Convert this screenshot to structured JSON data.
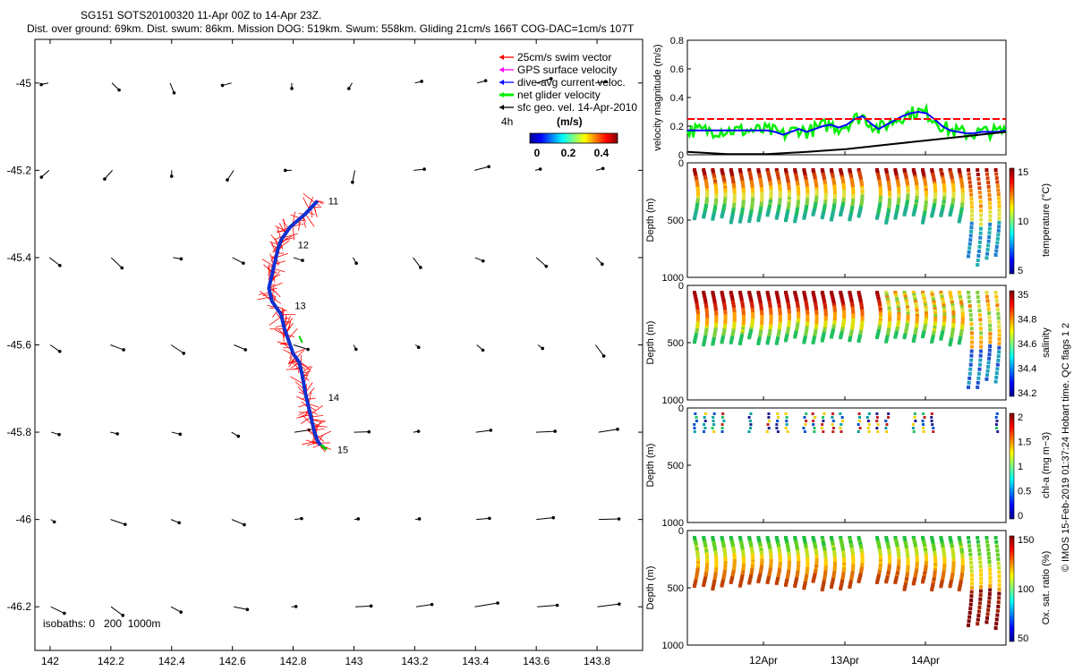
{
  "header": {
    "title": "SG151 SOTS20100320 11-Apr 00Z to 14-Apr 23Z.",
    "subtitle": "Dist. over ground: 69km. Dist. swum: 86km. Mission DOG: 519km. Swum: 558km. Gliding 21cm/s 166T COG-DAC=1cm/s 107T"
  },
  "map": {
    "legend": [
      {
        "label": "25cm/s swim vector",
        "color": "#ff0000"
      },
      {
        "label": "GPS surface velocity",
        "color": "#ff00ff"
      },
      {
        "label": "dive-avg current veloc.",
        "color": "#0000ff"
      },
      {
        "label": "net glider velocity",
        "color": "#00ee00"
      },
      {
        "label": "sfc geo. vel. 14-Apr-2010",
        "color": "#000000"
      }
    ],
    "legend_extra": "4h",
    "colorbar_unit": "(m/s)",
    "colorbar_ticks": [
      "0",
      "0.2",
      "0.4"
    ],
    "isobaths_label": "isobaths: 0   200  1000m",
    "x_ticks": [
      "142",
      "142.2",
      "142.4",
      "142.6",
      "142.8",
      "143",
      "143.2",
      "143.4",
      "143.6",
      "143.8"
    ],
    "y_ticks": [
      "-45",
      "-45.2",
      "-45.4",
      "-45.6",
      "-45.8",
      "-46",
      "-46.2"
    ],
    "track_labels": [
      "11",
      "12",
      "13",
      "14",
      "15"
    ],
    "colors": {
      "track": "#1030d0",
      "swim": "#ff0000",
      "net": "#00cc00",
      "geo": "#000000"
    }
  },
  "right_panels": {
    "velocity": {
      "ylabel": "velocity magnitude (m/s)",
      "y_ticks": [
        "0",
        "0.2",
        "0.4",
        "0.6",
        "0.8"
      ]
    },
    "temperature": {
      "ylabel": "Depth (m)",
      "cbar_label": "temperature (°C)",
      "cbar_ticks": [
        "15",
        "10",
        "5"
      ],
      "y_ticks": [
        "0",
        "500",
        "1000"
      ]
    },
    "salinity": {
      "ylabel": "Depth (m)",
      "cbar_label": "salinity",
      "cbar_ticks": [
        "35",
        "34.8",
        "34.6",
        "34.4",
        "34.2"
      ],
      "y_ticks": [
        "0",
        "500",
        "1000"
      ]
    },
    "chla": {
      "ylabel": "Depth (m)",
      "cbar_label": "chl-a (mg m−3)",
      "cbar_ticks": [
        "2",
        "1.5",
        "1",
        "0.5",
        "0"
      ],
      "y_ticks": [
        "0",
        "500",
        "1000"
      ]
    },
    "oxygen": {
      "ylabel": "Depth (m)",
      "cbar_label": "Ox. sat. ratio (%)",
      "cbar_ticks": [
        "150",
        "100",
        "50"
      ],
      "y_ticks": [
        "0",
        "500",
        "1000"
      ]
    },
    "x_ticks": [
      "12Apr",
      "13Apr",
      "14Apr"
    ]
  },
  "credit": "© IMOS 15-Feb-2019 01:37:24 Hobart time. QC flags 1  2",
  "chart_data": [
    {
      "type": "line",
      "x_type": "position",
      "xlim": [
        141.95,
        143.95
      ],
      "ylim": [
        -46.3,
        -44.9
      ],
      "track": {
        "x": [
          142.88,
          142.84,
          142.79,
          142.76,
          142.75,
          142.74,
          142.73,
          142.72,
          142.73,
          142.76,
          142.77,
          142.78,
          142.8,
          142.82,
          142.83,
          142.84,
          142.85,
          142.86,
          142.87,
          142.88,
          142.89
        ],
        "y": [
          -45.27,
          -45.3,
          -45.33,
          -45.36,
          -45.38,
          -45.41,
          -45.44,
          -45.47,
          -45.5,
          -45.53,
          -45.56,
          -45.58,
          -45.62,
          -45.64,
          -45.67,
          -45.71,
          -45.74,
          -45.77,
          -45.8,
          -45.82,
          -45.83
        ]
      },
      "track_label_positions": {
        "x": [
          142.88,
          142.78,
          142.77,
          142.88,
          142.91
        ],
        "y": [
          -45.27,
          -45.37,
          -45.51,
          -45.72,
          -45.84
        ]
      }
    },
    {
      "type": "line",
      "ylabel": "velocity magnitude (m/s)",
      "ylim": [
        0,
        0.8
      ],
      "x_range": [
        "11-Apr",
        "15-Apr"
      ],
      "series": [
        {
          "color": "#0000ff",
          "x": [
            0,
            0.1,
            0.3,
            0.5,
            0.7,
            0.9,
            1.0,
            1.1,
            1.2,
            1.3,
            1.4,
            1.5,
            1.6,
            1.7,
            1.8,
            1.9,
            2.0,
            2.1,
            2.2,
            2.3,
            2.4,
            2.5,
            2.6,
            2.7,
            2.8,
            2.9,
            3.0,
            3.1,
            3.2,
            3.3,
            3.4,
            3.5,
            3.6,
            3.7,
            3.8,
            3.9,
            4.0
          ],
          "y": [
            0.17,
            0.17,
            0.17,
            0.17,
            0.17,
            0.17,
            0.17,
            0.16,
            0.14,
            0.16,
            0.18,
            0.16,
            0.18,
            0.2,
            0.21,
            0.19,
            0.21,
            0.25,
            0.27,
            0.22,
            0.18,
            0.21,
            0.24,
            0.27,
            0.29,
            0.3,
            0.29,
            0.25,
            0.2,
            0.17,
            0.16,
            0.15,
            0.15,
            0.16,
            0.16,
            0.16,
            0.17
          ]
        },
        {
          "color": "#000000",
          "x": [
            0,
            0.5,
            1,
            1.5,
            2,
            2.5,
            3,
            3.5,
            4
          ],
          "y": [
            0.02,
            0.005,
            0.005,
            0.02,
            0.04,
            0.07,
            0.1,
            0.13,
            0.16
          ]
        },
        {
          "color": "#ff0000",
          "x": [
            0,
            4
          ],
          "y": [
            0.25,
            0.25
          ]
        }
      ]
    }
  ]
}
